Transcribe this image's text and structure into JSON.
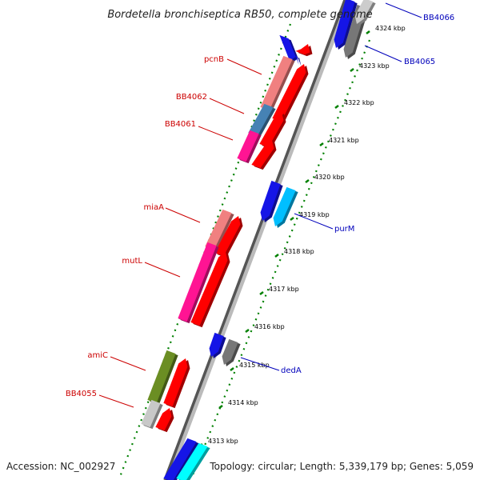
{
  "title": "Bordetella bronchiseptica RB50, complete genome",
  "footer": {
    "accession": "Accession: NC_002927",
    "topology": "Topology: circular; Length: 5,339,179 bp; Genes: 5,059"
  },
  "colors": {
    "left_label": "#cc0000",
    "right_label": "#0000bb",
    "tick": "#008000",
    "backbone_dark": "#555555",
    "backbone_light": "#bbbbbb"
  },
  "ticks": [
    {
      "label": "4313 kbp"
    },
    {
      "label": "4314 kbp"
    },
    {
      "label": "4315 kbp"
    },
    {
      "label": "4316 kbp"
    },
    {
      "label": "4317 kbp"
    },
    {
      "label": "4318 kbp"
    },
    {
      "label": "4319 kbp"
    },
    {
      "label": "4320 kbp"
    },
    {
      "label": "4321 kbp"
    },
    {
      "label": "4322 kbp"
    },
    {
      "label": "4323 kbp"
    },
    {
      "label": "4324 kbp"
    }
  ],
  "left_labels": [
    {
      "text": "pcnB"
    },
    {
      "text": "BB4062"
    },
    {
      "text": "BB4061"
    },
    {
      "text": "miaA"
    },
    {
      "text": "mutL"
    },
    {
      "text": "amiC"
    },
    {
      "text": "BB4055"
    }
  ],
  "right_labels": [
    {
      "text": "BB4066"
    },
    {
      "text": "BB4065"
    },
    {
      "text": "purM"
    },
    {
      "text": "dedA"
    }
  ]
}
